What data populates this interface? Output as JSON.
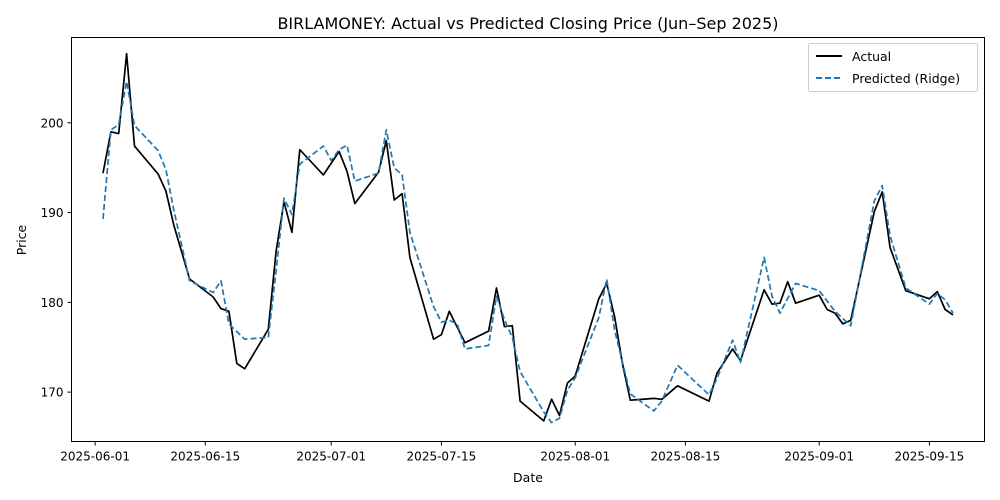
{
  "chart_data": {
    "type": "line",
    "title": "BIRLAMONEY: Actual vs Predicted Closing Price (Jun–Sep 2025)",
    "xlabel": "Date",
    "ylabel": "Price",
    "xlim": [
      "2025-05-29",
      "2025-09-22"
    ],
    "ylim": [
      164.5,
      209.5
    ],
    "x_ticks": [
      "2025-06-01",
      "2025-06-15",
      "2025-07-01",
      "2025-07-15",
      "2025-08-01",
      "2025-08-15",
      "2025-09-01",
      "2025-09-15"
    ],
    "y_ticks": [
      170,
      180,
      190,
      200
    ],
    "grid": false,
    "legend": "top-right",
    "series": [
      {
        "name": "Actual",
        "color": "#000000",
        "style": "solid",
        "points": [
          [
            "2025-06-02",
            194.4
          ],
          [
            "2025-06-03",
            199.0
          ],
          [
            "2025-06-04",
            198.8
          ],
          [
            "2025-06-05",
            207.7
          ],
          [
            "2025-06-06",
            197.4
          ],
          [
            "2025-06-09",
            194.3
          ],
          [
            "2025-06-10",
            192.4
          ],
          [
            "2025-06-11",
            188.6
          ],
          [
            "2025-06-13",
            182.6
          ],
          [
            "2025-06-16",
            180.6
          ],
          [
            "2025-06-17",
            179.3
          ],
          [
            "2025-06-18",
            179.0
          ],
          [
            "2025-06-19",
            173.2
          ],
          [
            "2025-06-20",
            172.6
          ],
          [
            "2025-06-23",
            177.0
          ],
          [
            "2025-06-24",
            185.7
          ],
          [
            "2025-06-25",
            191.2
          ],
          [
            "2025-06-26",
            187.8
          ],
          [
            "2025-06-27",
            197.0
          ],
          [
            "2025-06-30",
            194.2
          ],
          [
            "2025-07-02",
            196.8
          ],
          [
            "2025-07-03",
            194.6
          ],
          [
            "2025-07-04",
            191.0
          ],
          [
            "2025-07-07",
            194.5
          ],
          [
            "2025-07-08",
            198.0
          ],
          [
            "2025-07-09",
            191.4
          ],
          [
            "2025-07-10",
            192.1
          ],
          [
            "2025-07-11",
            185.0
          ],
          [
            "2025-07-14",
            175.9
          ],
          [
            "2025-07-15",
            176.4
          ],
          [
            "2025-07-16",
            179.0
          ],
          [
            "2025-07-18",
            175.5
          ],
          [
            "2025-07-21",
            176.8
          ],
          [
            "2025-07-22",
            181.6
          ],
          [
            "2025-07-23",
            177.3
          ],
          [
            "2025-07-24",
            177.4
          ],
          [
            "2025-07-25",
            169.0
          ],
          [
            "2025-07-28",
            166.8
          ],
          [
            "2025-07-29",
            169.2
          ],
          [
            "2025-07-30",
            167.4
          ],
          [
            "2025-07-31",
            171.0
          ],
          [
            "2025-08-01",
            171.8
          ],
          [
            "2025-08-04",
            180.4
          ],
          [
            "2025-08-05",
            182.1
          ],
          [
            "2025-08-06",
            178.4
          ],
          [
            "2025-08-07",
            173.2
          ],
          [
            "2025-08-08",
            169.1
          ],
          [
            "2025-08-11",
            169.3
          ],
          [
            "2025-08-12",
            169.2
          ],
          [
            "2025-08-14",
            170.7
          ],
          [
            "2025-08-18",
            169.0
          ],
          [
            "2025-08-19",
            172.1
          ],
          [
            "2025-08-21",
            174.8
          ],
          [
            "2025-08-22",
            173.5
          ],
          [
            "2025-08-25",
            181.4
          ],
          [
            "2025-08-26",
            179.8
          ],
          [
            "2025-08-27",
            179.9
          ],
          [
            "2025-08-28",
            182.3
          ],
          [
            "2025-08-29",
            179.9
          ],
          [
            "2025-09-01",
            180.8
          ],
          [
            "2025-09-02",
            179.2
          ],
          [
            "2025-09-03",
            178.8
          ],
          [
            "2025-09-04",
            177.6
          ],
          [
            "2025-09-05",
            178.0
          ],
          [
            "2025-09-08",
            190.1
          ],
          [
            "2025-09-09",
            192.3
          ],
          [
            "2025-09-10",
            186.1
          ],
          [
            "2025-09-12",
            181.3
          ],
          [
            "2025-09-15",
            180.4
          ],
          [
            "2025-09-16",
            181.2
          ],
          [
            "2025-09-17",
            179.2
          ],
          [
            "2025-09-18",
            178.6
          ]
        ]
      },
      {
        "name": "Predicted (Ridge)",
        "color": "#1f77b4",
        "style": "dashed",
        "points": [
          [
            "2025-06-02",
            189.3
          ],
          [
            "2025-06-03",
            199.2
          ],
          [
            "2025-06-04",
            199.8
          ],
          [
            "2025-06-05",
            204.6
          ],
          [
            "2025-06-06",
            199.7
          ],
          [
            "2025-06-09",
            196.9
          ],
          [
            "2025-06-10",
            194.8
          ],
          [
            "2025-06-11",
            190.3
          ],
          [
            "2025-06-13",
            182.4
          ],
          [
            "2025-06-16",
            181.1
          ],
          [
            "2025-06-17",
            182.4
          ],
          [
            "2025-06-18",
            177.6
          ],
          [
            "2025-06-20",
            175.9
          ],
          [
            "2025-06-23",
            176.1
          ],
          [
            "2025-06-24",
            183.5
          ],
          [
            "2025-06-25",
            191.6
          ],
          [
            "2025-06-26",
            189.8
          ],
          [
            "2025-06-27",
            195.4
          ],
          [
            "2025-06-30",
            197.4
          ],
          [
            "2025-07-01",
            195.8
          ],
          [
            "2025-07-02",
            197.0
          ],
          [
            "2025-07-03",
            197.5
          ],
          [
            "2025-07-04",
            193.5
          ],
          [
            "2025-07-07",
            194.4
          ],
          [
            "2025-07-08",
            199.2
          ],
          [
            "2025-07-09",
            195.0
          ],
          [
            "2025-07-10",
            194.2
          ],
          [
            "2025-07-11",
            187.8
          ],
          [
            "2025-07-14",
            179.5
          ],
          [
            "2025-07-15",
            177.8
          ],
          [
            "2025-07-16",
            178.0
          ],
          [
            "2025-07-17",
            177.6
          ],
          [
            "2025-07-18",
            174.8
          ],
          [
            "2025-07-21",
            175.2
          ],
          [
            "2025-07-22",
            180.7
          ],
          [
            "2025-07-23",
            178.1
          ],
          [
            "2025-07-24",
            176.1
          ],
          [
            "2025-07-25",
            172.3
          ],
          [
            "2025-07-28",
            167.8
          ],
          [
            "2025-07-29",
            166.6
          ],
          [
            "2025-07-30",
            167.1
          ],
          [
            "2025-07-31",
            170.2
          ],
          [
            "2025-08-01",
            171.6
          ],
          [
            "2025-08-04",
            178.3
          ],
          [
            "2025-08-05",
            182.6
          ],
          [
            "2025-08-06",
            176.9
          ],
          [
            "2025-08-08",
            169.8
          ],
          [
            "2025-08-11",
            167.9
          ],
          [
            "2025-08-12",
            169.0
          ],
          [
            "2025-08-14",
            173.0
          ],
          [
            "2025-08-18",
            169.7
          ],
          [
            "2025-08-19",
            171.5
          ],
          [
            "2025-08-21",
            175.8
          ],
          [
            "2025-08-22",
            173.3
          ],
          [
            "2025-08-25",
            185.0
          ],
          [
            "2025-08-26",
            180.7
          ],
          [
            "2025-08-27",
            178.8
          ],
          [
            "2025-08-29",
            182.1
          ],
          [
            "2025-09-01",
            181.3
          ],
          [
            "2025-09-03",
            179.0
          ],
          [
            "2025-09-05",
            177.4
          ],
          [
            "2025-09-08",
            191.3
          ],
          [
            "2025-09-09",
            193.0
          ],
          [
            "2025-09-10",
            187.4
          ],
          [
            "2025-09-12",
            181.6
          ],
          [
            "2025-09-15",
            179.8
          ],
          [
            "2025-09-16",
            181.0
          ],
          [
            "2025-09-17",
            180.3
          ],
          [
            "2025-09-18",
            178.8
          ]
        ]
      }
    ]
  }
}
